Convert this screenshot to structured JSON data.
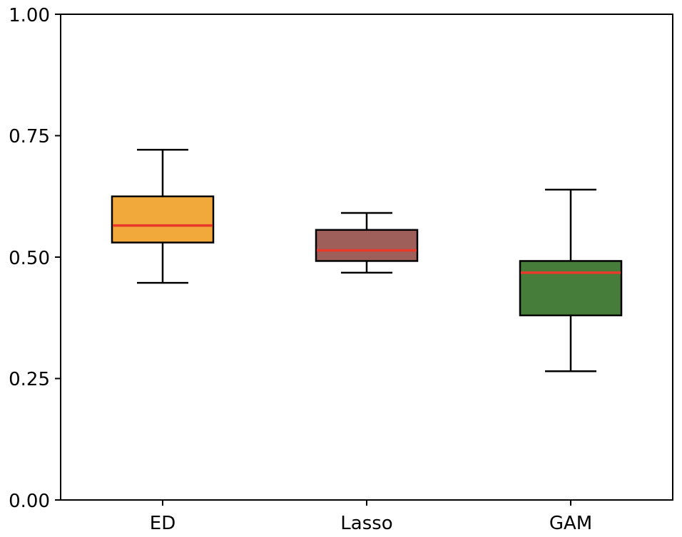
{
  "chart_data": {
    "type": "box",
    "title": "",
    "xlabel": "",
    "ylabel": "",
    "ylim": [
      0,
      1
    ],
    "yticks": [
      0.0,
      0.25,
      0.5,
      0.75,
      1.0
    ],
    "ytick_labels": [
      "0.00",
      "0.25",
      "0.50",
      "0.75",
      "1.00"
    ],
    "grid": false,
    "median_color": "#e8392a",
    "categories": [
      "ED",
      "Lasso",
      "GAM"
    ],
    "boxes": [
      {
        "name": "ED",
        "whisker_low": 0.447,
        "q1": 0.53,
        "median": 0.565,
        "q3": 0.625,
        "whisker_high": 0.721,
        "color": "#f2a93b"
      },
      {
        "name": "Lasso",
        "whisker_low": 0.468,
        "q1": 0.492,
        "median": 0.514,
        "q3": 0.556,
        "whisker_high": 0.591,
        "color": "#9e5f5b"
      },
      {
        "name": "GAM",
        "whisker_low": 0.265,
        "q1": 0.38,
        "median": 0.468,
        "q3": 0.492,
        "whisker_high": 0.639,
        "color": "#477d3a"
      }
    ]
  }
}
